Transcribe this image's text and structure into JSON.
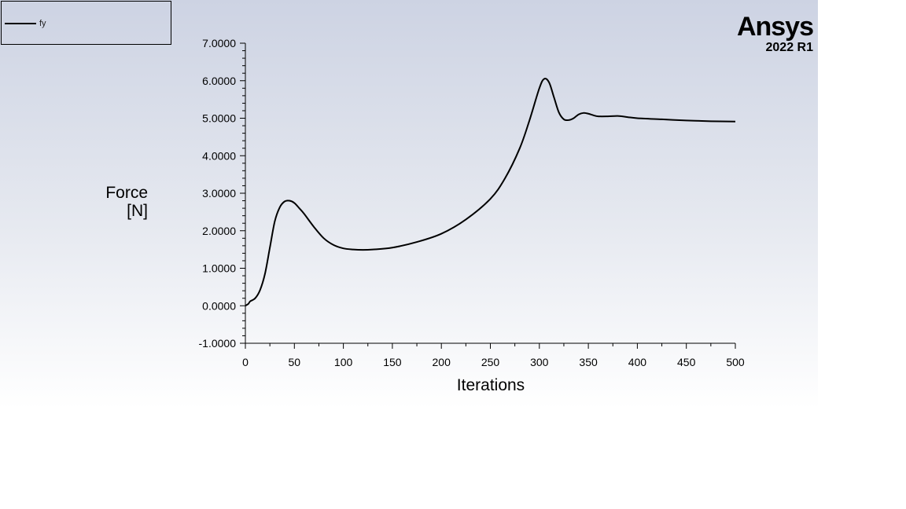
{
  "brand": {
    "name": "Ansys",
    "version": "2022 R1"
  },
  "chart_data": {
    "type": "line",
    "xlabel": "Iterations",
    "ylabel_lines": [
      "Force",
      "[N]"
    ],
    "xlim": [
      0,
      500
    ],
    "ylim": [
      -1,
      7
    ],
    "xticks": [
      "0",
      "50",
      "100",
      "150",
      "200",
      "250",
      "300",
      "350",
      "400",
      "450",
      "500"
    ],
    "yticks": [
      "-1.0000",
      "0.0000",
      "1.0000",
      "2.0000",
      "3.0000",
      "4.0000",
      "5.0000",
      "6.0000",
      "7.0000"
    ],
    "grid": false,
    "legend_position": "top-left",
    "series": [
      {
        "name": "fy",
        "color": "#000000",
        "x": [
          0,
          3,
          5,
          10,
          15,
          20,
          25,
          30,
          35,
          40,
          45,
          50,
          55,
          60,
          70,
          80,
          90,
          100,
          110,
          120,
          130,
          150,
          175,
          200,
          225,
          250,
          265,
          280,
          290,
          300,
          305,
          310,
          315,
          320,
          325,
          330,
          335,
          340,
          345,
          350,
          355,
          360,
          370,
          380,
          390,
          400,
          425,
          450,
          475,
          500
        ],
        "y": [
          0.0,
          0.05,
          0.12,
          0.2,
          0.42,
          0.85,
          1.55,
          2.25,
          2.62,
          2.78,
          2.8,
          2.74,
          2.6,
          2.45,
          2.1,
          1.8,
          1.62,
          1.53,
          1.5,
          1.49,
          1.5,
          1.55,
          1.7,
          1.92,
          2.3,
          2.85,
          3.4,
          4.2,
          4.95,
          5.8,
          6.05,
          5.95,
          5.55,
          5.15,
          4.97,
          4.95,
          5.0,
          5.1,
          5.14,
          5.12,
          5.08,
          5.05,
          5.05,
          5.06,
          5.03,
          5.0,
          4.97,
          4.94,
          4.92,
          4.91
        ]
      }
    ]
  }
}
